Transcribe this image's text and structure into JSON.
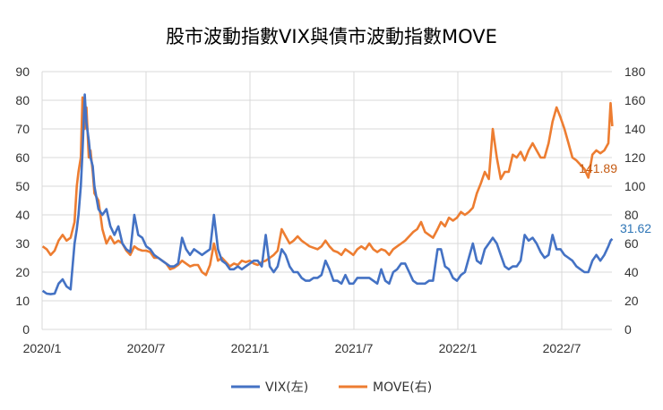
{
  "chart_data": {
    "type": "line",
    "title": "股市波動指數VIX與債市波動指數MOVE",
    "xlabel": "",
    "ylabel_left": "",
    "ylabel_right": "",
    "x_ticks": [
      "2020/1",
      "2020/7",
      "2021/1",
      "2021/7",
      "2022/1",
      "2022/7"
    ],
    "y_left": {
      "min": 0,
      "max": 90,
      "step": 10,
      "ticks": [
        "0",
        "10",
        "20",
        "30",
        "40",
        "50",
        "60",
        "70",
        "80",
        "90"
      ]
    },
    "y_right": {
      "min": 0,
      "max": 180,
      "step": 20,
      "ticks": [
        "0",
        "20",
        "40",
        "60",
        "80",
        "100",
        "120",
        "140",
        "160",
        "180"
      ]
    },
    "grid": true,
    "legend_position": "bottom",
    "series": [
      {
        "name": "VIX(左)",
        "axis": "left",
        "color": "#4472C4",
        "last_label": "31.62",
        "label_color": "#2E75B6"
      },
      {
        "name": "MOVE(右)",
        "axis": "right",
        "color": "#ED7D31",
        "last_label": "141.89",
        "label_color": "#C55A11"
      }
    ],
    "x": [
      "2020-01-02",
      "2020-01-09",
      "2020-01-16",
      "2020-01-23",
      "2020-01-30",
      "2020-02-06",
      "2020-02-13",
      "2020-02-20",
      "2020-02-27",
      "2020-03-02",
      "2020-03-05",
      "2020-03-09",
      "2020-03-12",
      "2020-03-16",
      "2020-03-19",
      "2020-03-23",
      "2020-03-26",
      "2020-03-30",
      "2020-04-02",
      "2020-04-09",
      "2020-04-16",
      "2020-04-23",
      "2020-04-30",
      "2020-05-07",
      "2020-05-14",
      "2020-05-21",
      "2020-05-28",
      "2020-06-04",
      "2020-06-11",
      "2020-06-18",
      "2020-06-25",
      "2020-07-02",
      "2020-07-09",
      "2020-07-16",
      "2020-07-23",
      "2020-07-30",
      "2020-08-06",
      "2020-08-13",
      "2020-08-20",
      "2020-08-27",
      "2020-09-03",
      "2020-09-10",
      "2020-09-17",
      "2020-09-24",
      "2020-10-01",
      "2020-10-08",
      "2020-10-15",
      "2020-10-22",
      "2020-10-29",
      "2020-11-05",
      "2020-11-12",
      "2020-11-19",
      "2020-11-26",
      "2020-12-03",
      "2020-12-10",
      "2020-12-17",
      "2020-12-24",
      "2020-12-31",
      "2021-01-07",
      "2021-01-14",
      "2021-01-21",
      "2021-01-28",
      "2021-02-04",
      "2021-02-11",
      "2021-02-18",
      "2021-02-25",
      "2021-03-04",
      "2021-03-11",
      "2021-03-18",
      "2021-03-25",
      "2021-04-01",
      "2021-04-08",
      "2021-04-15",
      "2021-04-22",
      "2021-04-29",
      "2021-05-06",
      "2021-05-13",
      "2021-05-20",
      "2021-05-27",
      "2021-06-03",
      "2021-06-10",
      "2021-06-17",
      "2021-06-24",
      "2021-07-01",
      "2021-07-08",
      "2021-07-15",
      "2021-07-22",
      "2021-07-29",
      "2021-08-05",
      "2021-08-12",
      "2021-08-19",
      "2021-08-26",
      "2021-09-02",
      "2021-09-09",
      "2021-09-16",
      "2021-09-23",
      "2021-09-30",
      "2021-10-07",
      "2021-10-14",
      "2021-10-21",
      "2021-10-28",
      "2021-11-04",
      "2021-11-11",
      "2021-11-18",
      "2021-11-26",
      "2021-12-02",
      "2021-12-09",
      "2021-12-16",
      "2021-12-23",
      "2021-12-30",
      "2022-01-06",
      "2022-01-13",
      "2022-01-20",
      "2022-01-27",
      "2022-02-03",
      "2022-02-10",
      "2022-02-17",
      "2022-02-24",
      "2022-03-03",
      "2022-03-10",
      "2022-03-17",
      "2022-03-24",
      "2022-03-31",
      "2022-04-07",
      "2022-04-14",
      "2022-04-21",
      "2022-04-28",
      "2022-05-05",
      "2022-05-12",
      "2022-05-19",
      "2022-05-26",
      "2022-06-02",
      "2022-06-09",
      "2022-06-16",
      "2022-06-23",
      "2022-06-30",
      "2022-07-07",
      "2022-07-14",
      "2022-07-21",
      "2022-07-28",
      "2022-08-04",
      "2022-08-11",
      "2022-08-18",
      "2022-08-25",
      "2022-09-01",
      "2022-09-08",
      "2022-09-15",
      "2022-09-22",
      "2022-09-26",
      "2022-09-29"
    ],
    "vix": [
      13.5,
      12.5,
      12.3,
      12.5,
      16,
      17.5,
      15,
      14,
      30,
      35,
      40,
      50,
      62,
      82,
      72,
      66,
      60,
      57,
      50,
      42,
      40,
      42,
      36,
      33,
      36,
      30,
      28,
      27,
      40,
      33,
      32,
      29,
      28,
      26,
      25,
      24,
      23,
      22,
      22,
      23,
      32,
      28,
      26,
      28,
      27,
      26,
      27,
      28,
      40,
      28,
      24,
      23,
      21,
      21,
      22,
      21,
      22,
      23,
      24,
      24,
      22,
      33,
      22,
      20,
      22,
      28,
      26,
      22,
      20,
      20,
      18,
      17,
      17,
      18,
      18,
      19,
      24,
      21,
      17,
      17,
      16,
      19,
      16,
      16,
      18,
      18,
      18,
      18,
      17,
      16,
      21,
      17,
      16,
      20,
      21,
      23,
      23,
      20,
      17,
      16,
      16,
      16,
      17,
      17,
      28,
      28,
      22,
      21,
      18,
      17,
      19,
      20,
      25,
      30,
      24,
      23,
      28,
      30,
      32,
      30,
      26,
      22,
      21,
      22,
      22,
      24,
      33,
      31,
      32,
      30,
      27,
      25,
      26,
      33,
      28,
      28,
      26,
      25,
      24,
      22,
      21,
      20,
      20,
      24,
      26,
      24,
      26,
      29,
      31,
      31.62
    ],
    "move": [
      58,
      56,
      52,
      55,
      62,
      66,
      62,
      64,
      75,
      100,
      110,
      120,
      162,
      140,
      155,
      120,
      125,
      110,
      95,
      90,
      70,
      60,
      65,
      60,
      62,
      60,
      55,
      52,
      58,
      56,
      55,
      55,
      54,
      50,
      50,
      48,
      46,
      42,
      43,
      45,
      48,
      46,
      44,
      45,
      45,
      40,
      38,
      45,
      60,
      48,
      50,
      47,
      44,
      46,
      45,
      48,
      47,
      48,
      46,
      45,
      47,
      48,
      50,
      52,
      55,
      70,
      65,
      60,
      62,
      65,
      62,
      60,
      58,
      57,
      56,
      58,
      62,
      58,
      55,
      54,
      52,
      56,
      54,
      52,
      56,
      58,
      56,
      60,
      56,
      54,
      56,
      55,
      52,
      56,
      58,
      60,
      62,
      65,
      68,
      70,
      75,
      68,
      66,
      64,
      70,
      75,
      72,
      78,
      76,
      78,
      82,
      80,
      82,
      85,
      95,
      102,
      110,
      105,
      140,
      120,
      105,
      110,
      110,
      122,
      120,
      124,
      118,
      125,
      130,
      125,
      120,
      120,
      130,
      145,
      155,
      148,
      140,
      130,
      120,
      118,
      115,
      112,
      106,
      122,
      125,
      123,
      125,
      130,
      158,
      141.89
    ]
  }
}
